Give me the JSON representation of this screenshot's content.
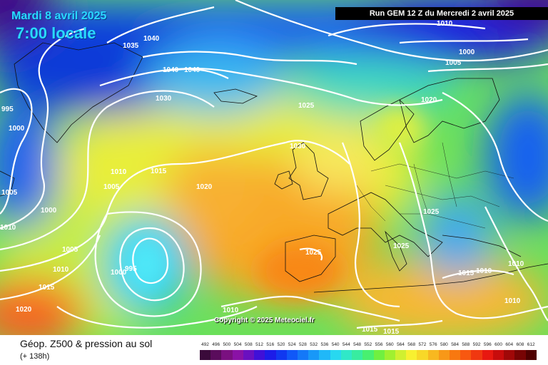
{
  "header": {
    "date": "Mardi 8 avril 2025",
    "time": "7:00 locale",
    "run": "Run GEM 12 Z du Mercredi 2 avril 2025"
  },
  "copyright": "Copyright © 2025 Meteociel.fr",
  "legend": {
    "title": "Géop. Z500 & pression au sol",
    "subtitle": "(+ 138h)",
    "scale": [
      "492",
      "496",
      "500",
      "504",
      "508",
      "512",
      "516",
      "520",
      "524",
      "528",
      "532",
      "536",
      "540",
      "544",
      "548",
      "552",
      "556",
      "560",
      "564",
      "568",
      "572",
      "576",
      "580",
      "584",
      "588",
      "592",
      "596",
      "600",
      "604",
      "608",
      "612"
    ],
    "scale_colors": [
      "#3a0a3a",
      "#5a0c5c",
      "#7a1080",
      "#8a12a6",
      "#6a10c0",
      "#4010d8",
      "#1c1ce8",
      "#1038f0",
      "#1058f8",
      "#1478f8",
      "#1898f8",
      "#20b8f8",
      "#28d8f0",
      "#30e8c8",
      "#38ecA0",
      "#48f070",
      "#70f040",
      "#a0f030",
      "#d0f030",
      "#f8f030",
      "#f8d828",
      "#f8b820",
      "#f89818",
      "#f87810",
      "#f85810",
      "#f03810",
      "#e81810",
      "#c80c0c",
      "#a00808",
      "#780404",
      "#500000"
    ]
  },
  "isobars": [
    "1010",
    "1000",
    "1005",
    "995",
    "1040",
    "1035",
    "1040",
    "1040",
    "1030",
    "1025",
    "1020",
    "1000",
    "1005",
    "1030",
    "1010",
    "1015",
    "1020",
    "1005",
    "1010",
    "1000",
    "1005",
    "1010",
    "1015",
    "1020",
    "1000",
    "995",
    "1025",
    "1025",
    "1025",
    "1015",
    "1010",
    "1010",
    "1010",
    "1015",
    "1015",
    "1010"
  ]
}
